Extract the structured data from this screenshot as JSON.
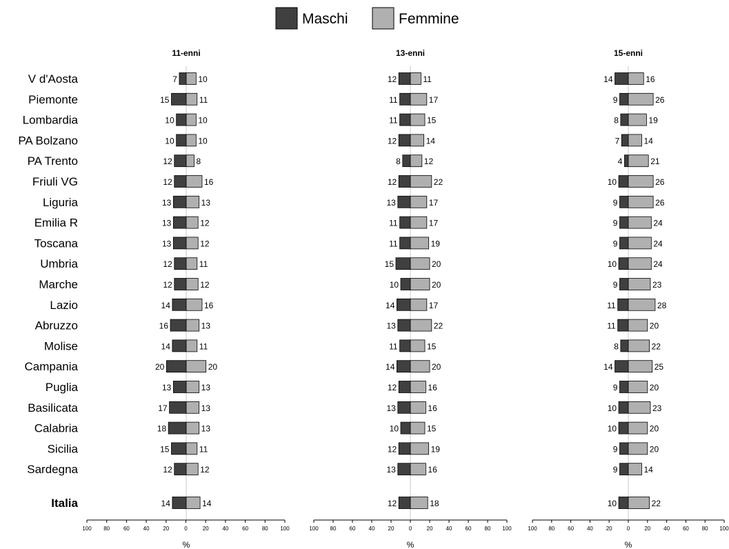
{
  "chart_data": {
    "type": "bar",
    "legend_placement": "top-center",
    "series": [
      {
        "name": "Maschi",
        "color": "#404040"
      },
      {
        "name": "Femmine",
        "color": "#b0b0b0"
      }
    ],
    "regions": [
      "V d'Aosta",
      "Piemonte",
      "Lombardia",
      "PA Bolzano",
      "PA Trento",
      "Friuli VG",
      "Liguria",
      "Emilia R",
      "Toscana",
      "Umbria",
      "Marche",
      "Lazio",
      "Abruzzo",
      "Molise",
      "Campania",
      "Puglia",
      "Basilicata",
      "Calabria",
      "Sicilia",
      "Sardegna"
    ],
    "total_label": "Italia",
    "axis": {
      "xlabel": "%",
      "xlim": [
        -100,
        100
      ],
      "ticks": [
        100,
        80,
        60,
        40,
        20,
        0,
        20,
        40,
        60,
        80,
        100
      ]
    },
    "panels": [
      {
        "title": "11-enni",
        "maschi": [
          7,
          15,
          10,
          10,
          12,
          12,
          13,
          13,
          13,
          12,
          12,
          14,
          16,
          14,
          20,
          13,
          17,
          18,
          15,
          12
        ],
        "femmine": [
          10,
          11,
          10,
          10,
          8,
          16,
          13,
          12,
          12,
          11,
          12,
          16,
          13,
          11,
          20,
          13,
          13,
          13,
          11,
          12
        ],
        "italia": {
          "maschi": 14,
          "femmine": 14
        }
      },
      {
        "title": "13-enni",
        "maschi": [
          12,
          11,
          11,
          12,
          8,
          12,
          13,
          11,
          11,
          15,
          10,
          14,
          13,
          11,
          14,
          12,
          13,
          10,
          12,
          13
        ],
        "femmine": [
          11,
          17,
          15,
          14,
          12,
          22,
          17,
          17,
          19,
          20,
          20,
          17,
          22,
          15,
          20,
          16,
          16,
          15,
          19,
          16
        ],
        "italia": {
          "maschi": 12,
          "femmine": 18
        }
      },
      {
        "title": "15-enni",
        "maschi": [
          14,
          9,
          8,
          7,
          4,
          10,
          9,
          9,
          9,
          10,
          9,
          11,
          11,
          8,
          14,
          9,
          10,
          10,
          9,
          9
        ],
        "femmine": [
          16,
          26,
          19,
          14,
          21,
          26,
          26,
          24,
          24,
          24,
          23,
          28,
          20,
          22,
          25,
          20,
          23,
          20,
          20,
          14
        ],
        "italia": {
          "maschi": 10,
          "femmine": 22
        }
      }
    ]
  }
}
